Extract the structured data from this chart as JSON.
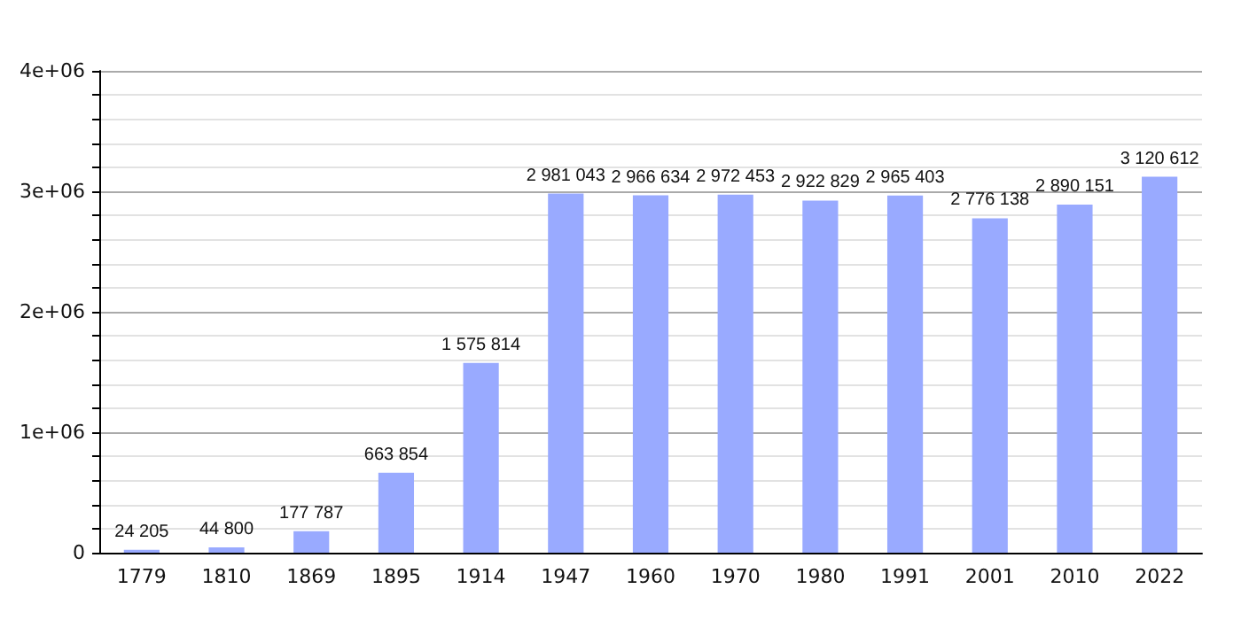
{
  "chart_data": {
    "type": "bar",
    "categories": [
      "1779",
      "1810",
      "1869",
      "1895",
      "1914",
      "1947",
      "1960",
      "1970",
      "1980",
      "1991",
      "2001",
      "2010",
      "2022"
    ],
    "values": [
      24205,
      44800,
      177787,
      663854,
      1575814,
      2981043,
      2966634,
      2972453,
      2922829,
      2965403,
      2776138,
      2890151,
      3120612
    ],
    "value_labels": [
      "24 205",
      "44 800",
      "177 787",
      "663 854",
      "1 575 814",
      "2 981 043",
      "2 966 634",
      "2 972 453",
      "2 922 829",
      "2 965 403",
      "2 776 138",
      "2 890 151",
      "3 120 612"
    ],
    "color": "#99aaff",
    "ylim": [
      0,
      4000000
    ],
    "yticks": [
      {
        "value": 0,
        "label": "0"
      },
      {
        "value": 200000,
        "label": null
      },
      {
        "value": 400000,
        "label": null
      },
      {
        "value": 600000,
        "label": null
      },
      {
        "value": 800000,
        "label": null
      },
      {
        "value": 1000000,
        "label": "1e+06"
      },
      {
        "value": 1200000,
        "label": null
      },
      {
        "value": 1400000,
        "label": null
      },
      {
        "value": 1600000,
        "label": null
      },
      {
        "value": 1800000,
        "label": null
      },
      {
        "value": 2000000,
        "label": "2e+06"
      },
      {
        "value": 2200000,
        "label": null
      },
      {
        "value": 2400000,
        "label": null
      },
      {
        "value": 2600000,
        "label": null
      },
      {
        "value": 2800000,
        "label": null
      },
      {
        "value": 3000000,
        "label": "3e+06"
      },
      {
        "value": 3200000,
        "label": null
      },
      {
        "value": 3400000,
        "label": null
      },
      {
        "value": 3600000,
        "label": null
      },
      {
        "value": 3800000,
        "label": null
      },
      {
        "value": 4000000,
        "label": "4e+06"
      }
    ],
    "grid": true
  }
}
